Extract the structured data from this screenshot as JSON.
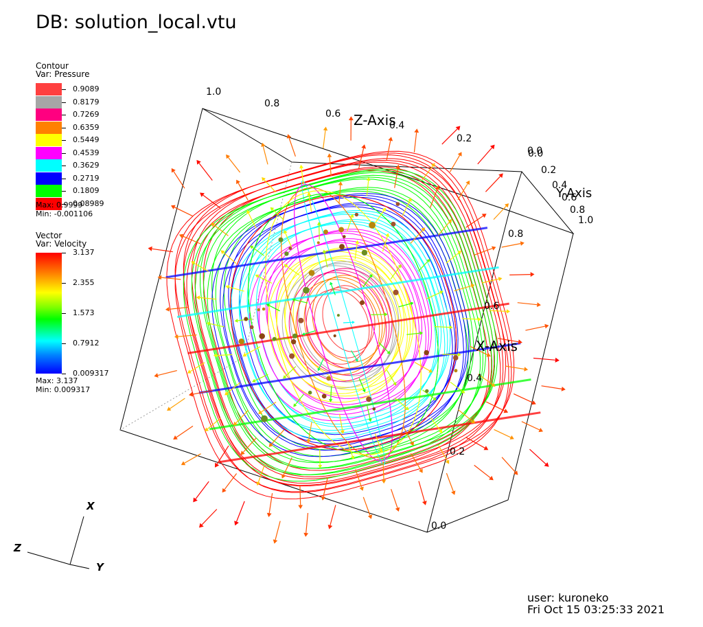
{
  "title": "DB: solution_local.vtu",
  "contour_legend": {
    "heading": "Contour",
    "var": "Var: Pressure",
    "levels": [
      {
        "label": "0.9089",
        "color": "#ff4040"
      },
      {
        "label": "0.8179",
        "color": "#a6a6a6"
      },
      {
        "label": "0.7269",
        "color": "#ff0080"
      },
      {
        "label": "0.6359",
        "color": "#ff8000"
      },
      {
        "label": "0.5449",
        "color": "#ffff00"
      },
      {
        "label": "0.4539",
        "color": "#ff00ff"
      },
      {
        "label": "0.3629",
        "color": "#00ffff"
      },
      {
        "label": "0.2719",
        "color": "#0000ff"
      },
      {
        "label": "0.1809",
        "color": "#00ff00"
      },
      {
        "label": "0.08989",
        "color": "#ff0000"
      }
    ],
    "max": "Max:  0.9999",
    "min": "Min:  -0.001106"
  },
  "vector_legend": {
    "heading": "Vector",
    "var": "Var: Velocity",
    "ticks": [
      "3.137",
      "2.355",
      "1.573",
      "0.7912",
      "0.009317"
    ],
    "max": "Max:  3.137",
    "min": "Min:  0.009317"
  },
  "axes": {
    "z_title": "Z-Axis",
    "y_title": "Y-Axis",
    "x_title": "X-Axis",
    "z_ticks": [
      "1.0",
      "0.8",
      "0.6",
      "0.4",
      "0.2",
      "0.0"
    ],
    "y_ticks": [
      "0.0",
      "0.2",
      "0.4",
      "0.6",
      "0.8",
      "1.0"
    ],
    "x_ticks": [
      "0.8",
      "0.6",
      "0.4",
      "0.2",
      "0.0"
    ]
  },
  "triad": {
    "x": "X",
    "y": "Y",
    "z": "Z"
  },
  "footer": {
    "user": "user: kuroneko",
    "date": "Fri Oct 15 03:25:33 2021"
  },
  "chart_data": {
    "type": "contour",
    "title": "DB: solution_local.vtu",
    "contour_variable": "Pressure",
    "contour_levels": [
      0.9089,
      0.8179,
      0.7269,
      0.6359,
      0.5449,
      0.4539,
      0.3629,
      0.2719,
      0.1809,
      0.08989
    ],
    "contour_range": [
      -0.001106,
      0.9999
    ],
    "vector_variable": "Velocity",
    "vector_range": [
      0.009317,
      3.137
    ],
    "axis_ranges": {
      "x": [
        0,
        1
      ],
      "y": [
        0,
        1
      ],
      "z": [
        0,
        1
      ]
    }
  }
}
